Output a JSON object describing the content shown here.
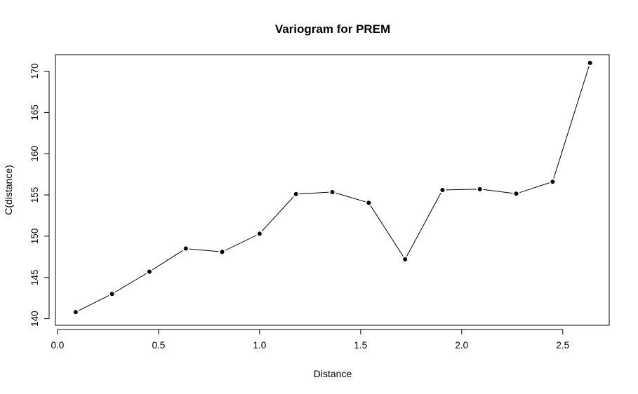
{
  "chart_data": {
    "type": "line",
    "title": "Variogram for PREM",
    "xlabel": "Distance",
    "ylabel": "C(distance)",
    "xlim": [
      -0.01,
      2.73
    ],
    "ylim": [
      139.2,
      172.0
    ],
    "x_ticks": [
      "0.0",
      "0.5",
      "1.0",
      "1.5",
      "2.0",
      "2.5"
    ],
    "y_ticks": [
      "140",
      "145",
      "150",
      "155",
      "160",
      "165",
      "170"
    ],
    "grid": false,
    "legend": "none",
    "markers": "filled-circle",
    "line_color": "#000000",
    "series": [
      {
        "x": [
          0.09,
          0.27,
          0.455,
          0.635,
          0.815,
          1.0,
          1.18,
          1.36,
          1.54,
          1.72,
          1.905,
          2.09,
          2.27,
          2.45,
          2.635
        ],
        "values": [
          140.8,
          143.0,
          145.7,
          148.5,
          148.1,
          150.3,
          155.1,
          155.35,
          154.05,
          147.2,
          155.6,
          155.7,
          155.15,
          156.6,
          171.0
        ]
      }
    ]
  }
}
